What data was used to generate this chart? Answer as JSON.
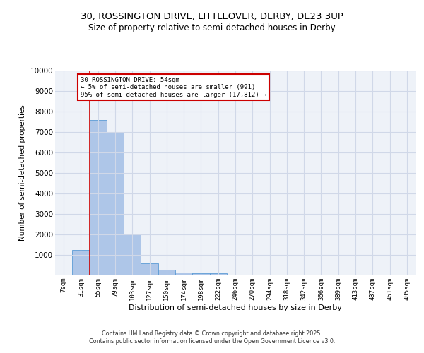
{
  "title_line1": "30, ROSSINGTON DRIVE, LITTLEOVER, DERBY, DE23 3UP",
  "title_line2": "Size of property relative to semi-detached houses in Derby",
  "xlabel": "Distribution of semi-detached houses by size in Derby",
  "ylabel": "Number of semi-detached properties",
  "categories": [
    "7sqm",
    "31sqm",
    "55sqm",
    "79sqm",
    "103sqm",
    "127sqm",
    "150sqm",
    "174sqm",
    "198sqm",
    "222sqm",
    "246sqm",
    "270sqm",
    "294sqm",
    "318sqm",
    "342sqm",
    "366sqm",
    "389sqm",
    "413sqm",
    "437sqm",
    "461sqm",
    "485sqm"
  ],
  "values": [
    50,
    1250,
    7600,
    7000,
    2000,
    580,
    260,
    140,
    120,
    90,
    0,
    0,
    0,
    0,
    0,
    0,
    0,
    0,
    0,
    0,
    0
  ],
  "bar_color": "#aec6e8",
  "bar_edge_color": "#5b9bd5",
  "vline_x_index": 1.5,
  "vline_color": "#cc0000",
  "annotation_title": "30 ROSSINGTON DRIVE: 54sqm",
  "annotation_line1": "← 5% of semi-detached houses are smaller (991)",
  "annotation_line2": "95% of semi-detached houses are larger (17,812) →",
  "annotation_box_color": "#cc0000",
  "ylim": [
    0,
    10000
  ],
  "yticks": [
    0,
    1000,
    2000,
    3000,
    4000,
    5000,
    6000,
    7000,
    8000,
    9000,
    10000
  ],
  "grid_color": "#d0d8e8",
  "background_color": "#eef2f8",
  "footer_line1": "Contains HM Land Registry data © Crown copyright and database right 2025.",
  "footer_line2": "Contains public sector information licensed under the Open Government Licence v3.0."
}
